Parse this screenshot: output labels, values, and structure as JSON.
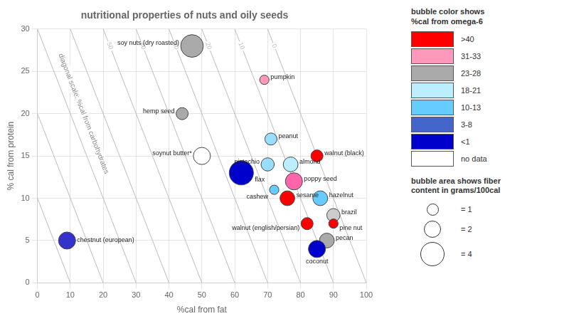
{
  "chart_data": {
    "type": "bubble",
    "title": "nutritional properties of nuts and oily seeds",
    "x_label": "%cal from fat",
    "y_label": "% cal from protein",
    "xlim": [
      0,
      100
    ],
    "ylim": [
      0,
      30
    ],
    "xticks": [
      0,
      10,
      20,
      30,
      40,
      50,
      60,
      70,
      80,
      90,
      100
    ],
    "yticks": [
      0,
      5,
      10,
      15,
      20,
      25,
      30
    ],
    "grid": true,
    "points": [
      {
        "name": "soy nuts (dry roasted)",
        "x": 47,
        "y": 28,
        "color": "#aaaaaa",
        "fiber": 3.5
      },
      {
        "name": "hemp seed",
        "x": 44,
        "y": 20,
        "color": "#aaaaaa",
        "fiber": 1.0
      },
      {
        "name": "pumpkin",
        "x": 69,
        "y": 24,
        "color": "#ff99bb",
        "fiber": 0.6
      },
      {
        "name": "soynut butter*",
        "x": 50,
        "y": 15,
        "color": "#ffffff",
        "fiber": 2.0
      },
      {
        "name": "flax",
        "x": 62,
        "y": 13,
        "color": "#0000cc",
        "fiber": 4.0
      },
      {
        "name": "pistachio",
        "x": 70,
        "y": 14,
        "color": "#99ddff",
        "fiber": 1.2
      },
      {
        "name": "peanut",
        "x": 71,
        "y": 17,
        "color": "#99ddff",
        "fiber": 1.0
      },
      {
        "name": "almond",
        "x": 77,
        "y": 14,
        "color": "#bbeeff",
        "fiber": 1.5
      },
      {
        "name": "walnut (black)",
        "x": 85,
        "y": 15,
        "color": "#ff0000",
        "fiber": 1.0
      },
      {
        "name": "cashew",
        "x": 72,
        "y": 11,
        "color": "#66ccff",
        "fiber": 0.6
      },
      {
        "name": "poppy seed",
        "x": 78,
        "y": 12,
        "color": "#ff66aa",
        "fiber": 2.0
      },
      {
        "name": "sesame",
        "x": 76,
        "y": 10,
        "color": "#ff0000",
        "fiber": 1.5
      },
      {
        "name": "hazelnut",
        "x": 86,
        "y": 10,
        "color": "#66ccff",
        "fiber": 1.5
      },
      {
        "name": "walnut (english/persian)",
        "x": 82,
        "y": 7,
        "color": "#ff0000",
        "fiber": 1.0
      },
      {
        "name": "brazil",
        "x": 90,
        "y": 8,
        "color": "#cccccc",
        "fiber": 1.2
      },
      {
        "name": "pine nut",
        "x": 90,
        "y": 7,
        "color": "#ff0000",
        "fiber": 0.6
      },
      {
        "name": "pecan",
        "x": 88,
        "y": 5,
        "color": "#aaaaaa",
        "fiber": 1.5
      },
      {
        "name": "coconut",
        "x": 85,
        "y": 4,
        "color": "#0000cc",
        "fiber": 2.0
      },
      {
        "name": "chestnut (european)",
        "x": 9,
        "y": 5,
        "color": "#3333cc",
        "fiber": 2.0
      }
    ],
    "diagonals": {
      "label": "diagonal scale: %cal from carbohydrates",
      "color": "#bbbbbb",
      "values": [
        0,
        10,
        20,
        30,
        40,
        50,
        60,
        70,
        80,
        90
      ],
      "value_labels": [
        "0",
        "10",
        "20",
        "30",
        "40",
        "50",
        null,
        null,
        null,
        null
      ]
    },
    "color_legend": {
      "title": "bubble color shows\n%cal from omega-6",
      "entries": [
        {
          "label": ">40",
          "color": "#ff0000"
        },
        {
          "label": "31-33",
          "color": "#ff99bb"
        },
        {
          "label": "23-28",
          "color": "#aaaaaa"
        },
        {
          "label": "18-21",
          "color": "#bbeeff"
        },
        {
          "label": "10-13",
          "color": "#66ccff"
        },
        {
          "label": "3-8",
          "color": "#4466cc"
        },
        {
          "label": "<1",
          "color": "#0000cc"
        },
        {
          "label": "no data",
          "color": "#ffffff"
        }
      ]
    },
    "size_legend": {
      "title": "bubble area shows fiber\ncontent in grams/100cal",
      "entries": [
        {
          "value": 1,
          "label": "= 1"
        },
        {
          "value": 2,
          "label": "= 2"
        },
        {
          "value": 4,
          "label": "= 4"
        }
      ]
    }
  }
}
